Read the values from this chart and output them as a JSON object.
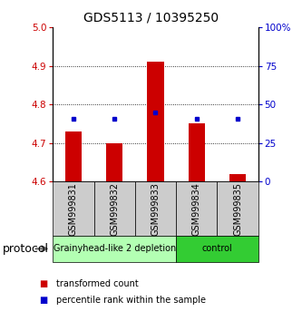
{
  "title": "GDS5113 / 10395250",
  "samples": [
    "GSM999831",
    "GSM999832",
    "GSM999833",
    "GSM999834",
    "GSM999835"
  ],
  "red_bar_bottom": 4.6,
  "red_bar_tops": [
    4.73,
    4.7,
    4.91,
    4.75,
    4.62
  ],
  "blue_square_y": [
    4.762,
    4.762,
    4.778,
    4.762,
    4.762
  ],
  "ylim": [
    4.6,
    5.0
  ],
  "yticks_left": [
    4.6,
    4.7,
    4.8,
    4.9,
    5.0
  ],
  "yticks_right": [
    0,
    25,
    50,
    75,
    100
  ],
  "yticks_right_labels": [
    "0",
    "25",
    "50",
    "75",
    "100%"
  ],
  "groups": [
    {
      "label": "Grainyhead-like 2 depletion",
      "indices": [
        0,
        1,
        2
      ],
      "color": "#b3ffb3"
    },
    {
      "label": "control",
      "indices": [
        3,
        4
      ],
      "color": "#33cc33"
    }
  ],
  "protocol_label": "protocol",
  "legend_red": "transformed count",
  "legend_blue": "percentile rank within the sample",
  "bar_color": "#cc0000",
  "square_color": "#0000cc",
  "left_tick_color": "#cc0000",
  "right_tick_color": "#0000cc",
  "title_fontsize": 10,
  "tick_fontsize": 7.5,
  "sample_fontsize": 7,
  "group_fontsize": 7,
  "legend_fontsize": 7,
  "protocol_fontsize": 9,
  "grid_yticks": [
    4.7,
    4.8,
    4.9
  ]
}
